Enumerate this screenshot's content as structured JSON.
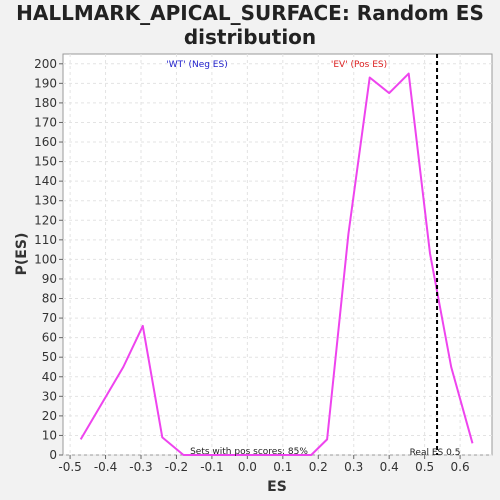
{
  "chart_data": {
    "type": "line",
    "title": "HALLMARK_APICAL_SURFACE: Random ES distribution",
    "title_lines": [
      "HALLMARK_APICAL_SURFACE: Random ES",
      "distribution"
    ],
    "xlabel": "ES",
    "ylabel": "P(ES)",
    "xlim": [
      -0.52,
      0.69
    ],
    "ylim": [
      0,
      205
    ],
    "x_ticks": [
      -0.5,
      -0.4,
      -0.3,
      -0.2,
      -0.1,
      0.0,
      0.1,
      0.2,
      0.3,
      0.4,
      0.5,
      0.6
    ],
    "x_tick_labels": [
      "-0.5",
      "-0.4",
      "-0.3",
      "-0.2",
      "-0.1",
      "0.0",
      "0.1",
      "0.2",
      "0.3",
      "0.4",
      "0.5",
      "0.6"
    ],
    "y_ticks": [
      0,
      10,
      20,
      30,
      40,
      50,
      60,
      70,
      80,
      90,
      100,
      110,
      120,
      130,
      140,
      150,
      160,
      170,
      180,
      190,
      200
    ],
    "grid": true,
    "series": [
      {
        "color": "#ee44ee",
        "x": [
          -0.47,
          -0.35,
          -0.295,
          -0.24,
          -0.18,
          0.0,
          0.18,
          0.225,
          0.285,
          0.345,
          0.4,
          0.455,
          0.515,
          0.575,
          0.635
        ],
        "y": [
          8,
          45,
          66,
          9,
          0,
          0,
          0,
          8,
          113,
          193,
          185,
          195,
          103,
          45,
          6
        ]
      }
    ],
    "real_es": 0.535,
    "annotations": {
      "neg_label": "'WT' (Neg ES)",
      "pos_label": "'EV' (Pos ES)",
      "pos_scores": "Sets with pos scores: 85%",
      "real_es_label": "Real ES 0.5"
    },
    "colors": {
      "neg_label": "#2222cc",
      "pos_label": "#dd2222",
      "line": "#ee44ee",
      "real_es_line": "#000000"
    }
  }
}
